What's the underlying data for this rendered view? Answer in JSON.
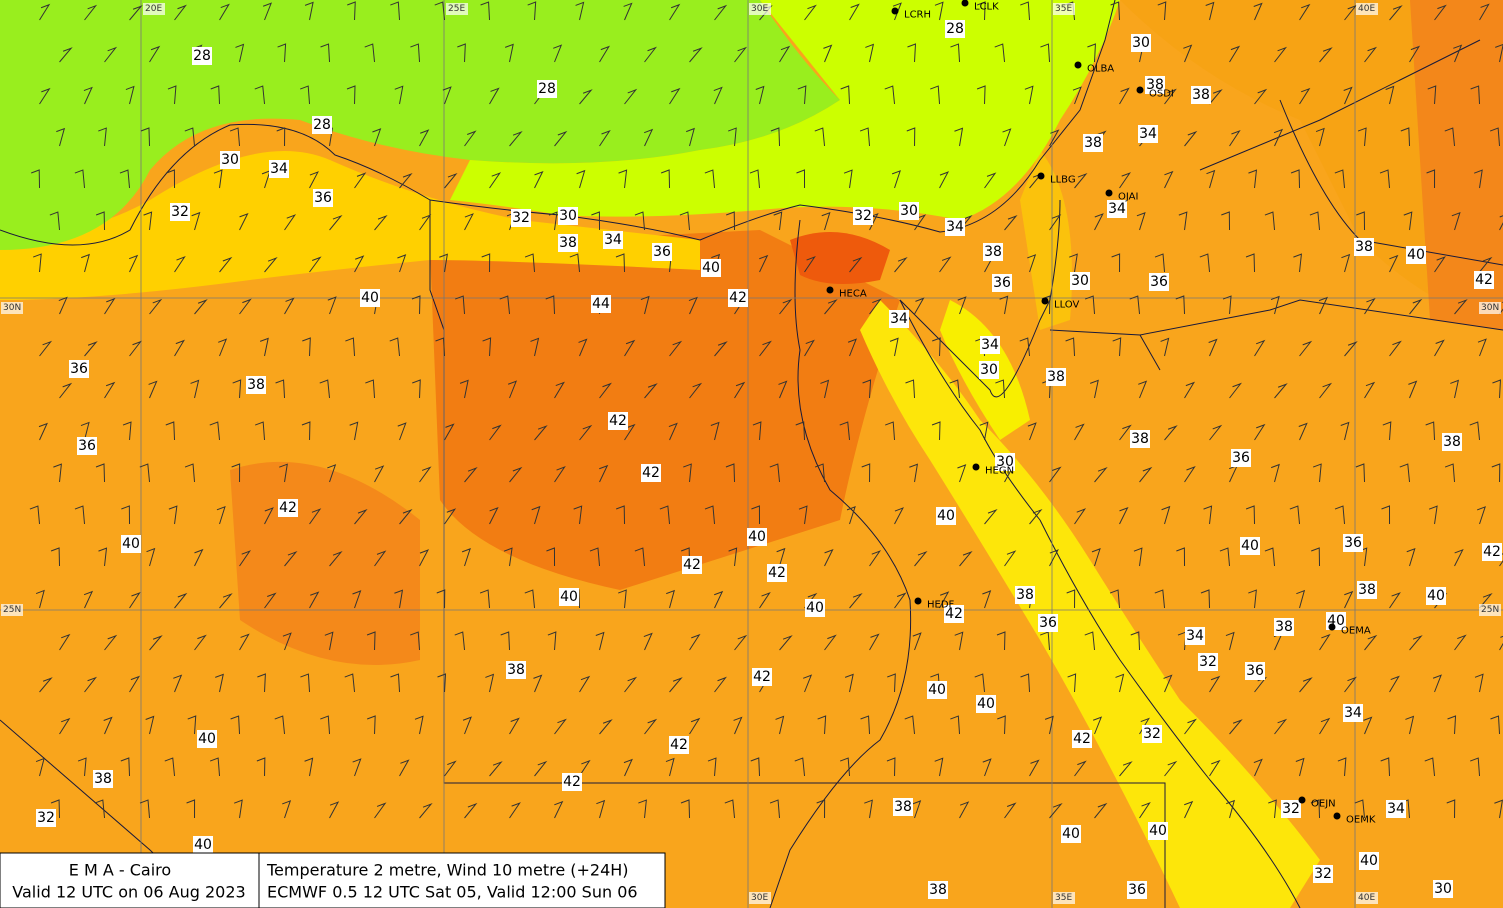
{
  "grid_labels": {
    "top": [
      "20E",
      "25E",
      "30E",
      "35E",
      "40E"
    ],
    "bottom": [
      "30E",
      "35E",
      "40E"
    ],
    "left": [
      "30N",
      "25N"
    ],
    "right": [
      "30N",
      "25N"
    ]
  },
  "stations": [
    "LCRH",
    "LCLK",
    "OLBA",
    "OSDI",
    "LLBG",
    "OJAI",
    "HECA",
    "LLOV",
    "HEGN",
    "HEDF",
    "OEMA",
    "OEJN",
    "OEMK"
  ],
  "temperature_labels": [
    28,
    28,
    28,
    28,
    30,
    38,
    38,
    34,
    38,
    30,
    34,
    36,
    32,
    32,
    30,
    38,
    34,
    36,
    40,
    32,
    30,
    34,
    38,
    34,
    36,
    30,
    36,
    38,
    40,
    42,
    40,
    44,
    42,
    34,
    34,
    30,
    38,
    36,
    38,
    42,
    38,
    38,
    36,
    42,
    30,
    36,
    42,
    40,
    40,
    40,
    40,
    36,
    42,
    42,
    42,
    38,
    40,
    40,
    40,
    42,
    38,
    36,
    40,
    38,
    34,
    32,
    36,
    38,
    42,
    40,
    40,
    34,
    42,
    32,
    40,
    42,
    38,
    42,
    38,
    34,
    32,
    32,
    40,
    40,
    40,
    40,
    32,
    38,
    36,
    30
  ],
  "footer": {
    "left": [
      "E M A  -  Cairo",
      "Valid 12 UTC on 06 Aug 2023"
    ],
    "right": [
      "Temperature  2 metre, Wind  10 metre (+24H)",
      "ECMWF 0.5 12 UTC Sat 05, Valid 12:00 Sun 06"
    ]
  }
}
